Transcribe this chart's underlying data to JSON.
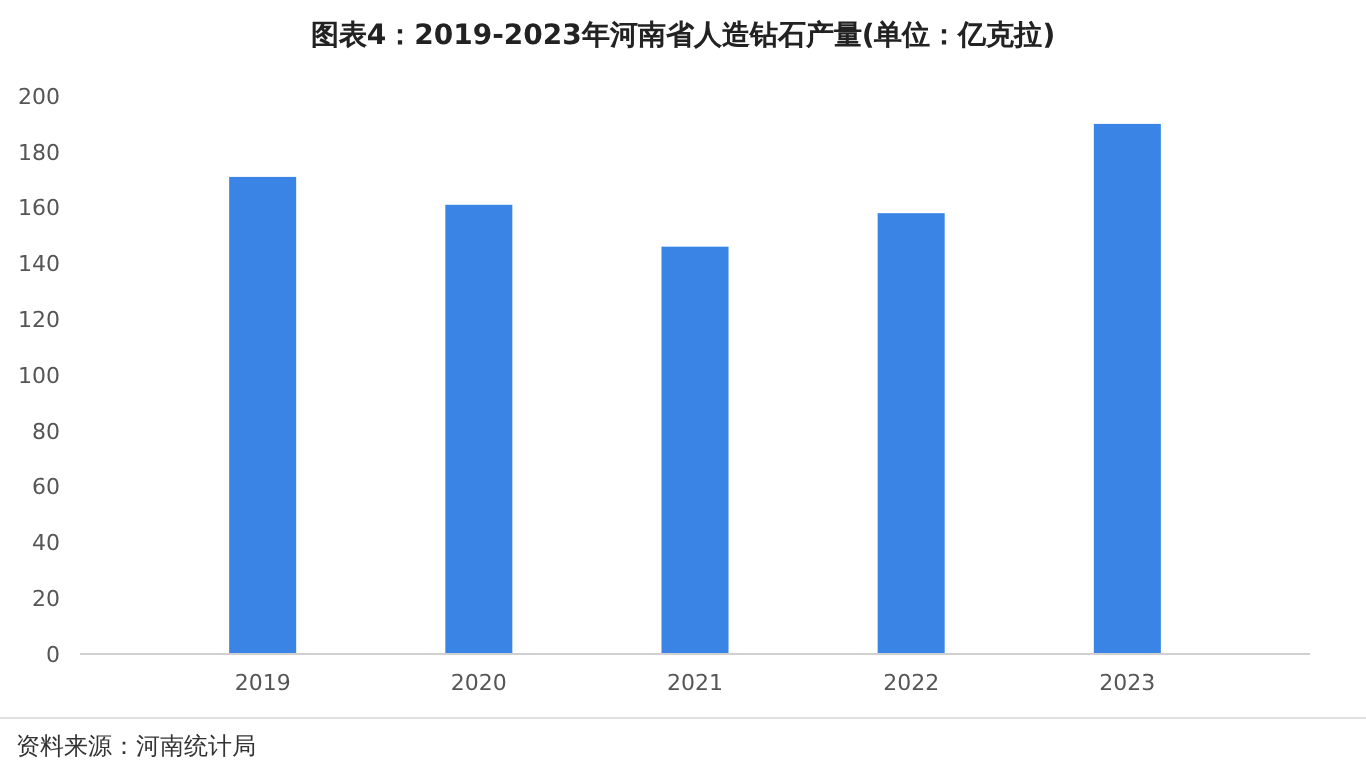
{
  "chart_data": {
    "type": "bar",
    "title": "图表4：2019-2023年河南省人造钻石产量(单位：亿克拉)",
    "categories": [
      "2019",
      "2020",
      "2021",
      "2022",
      "2023"
    ],
    "values": [
      171,
      161,
      146,
      158,
      190
    ],
    "color": "#3a84e6",
    "ylim": [
      0,
      200
    ],
    "yticks": [
      0,
      20,
      40,
      60,
      80,
      100,
      120,
      140,
      160,
      180,
      200
    ],
    "grid": false,
    "annotations": [
      "资料来源：河南统计局"
    ]
  }
}
